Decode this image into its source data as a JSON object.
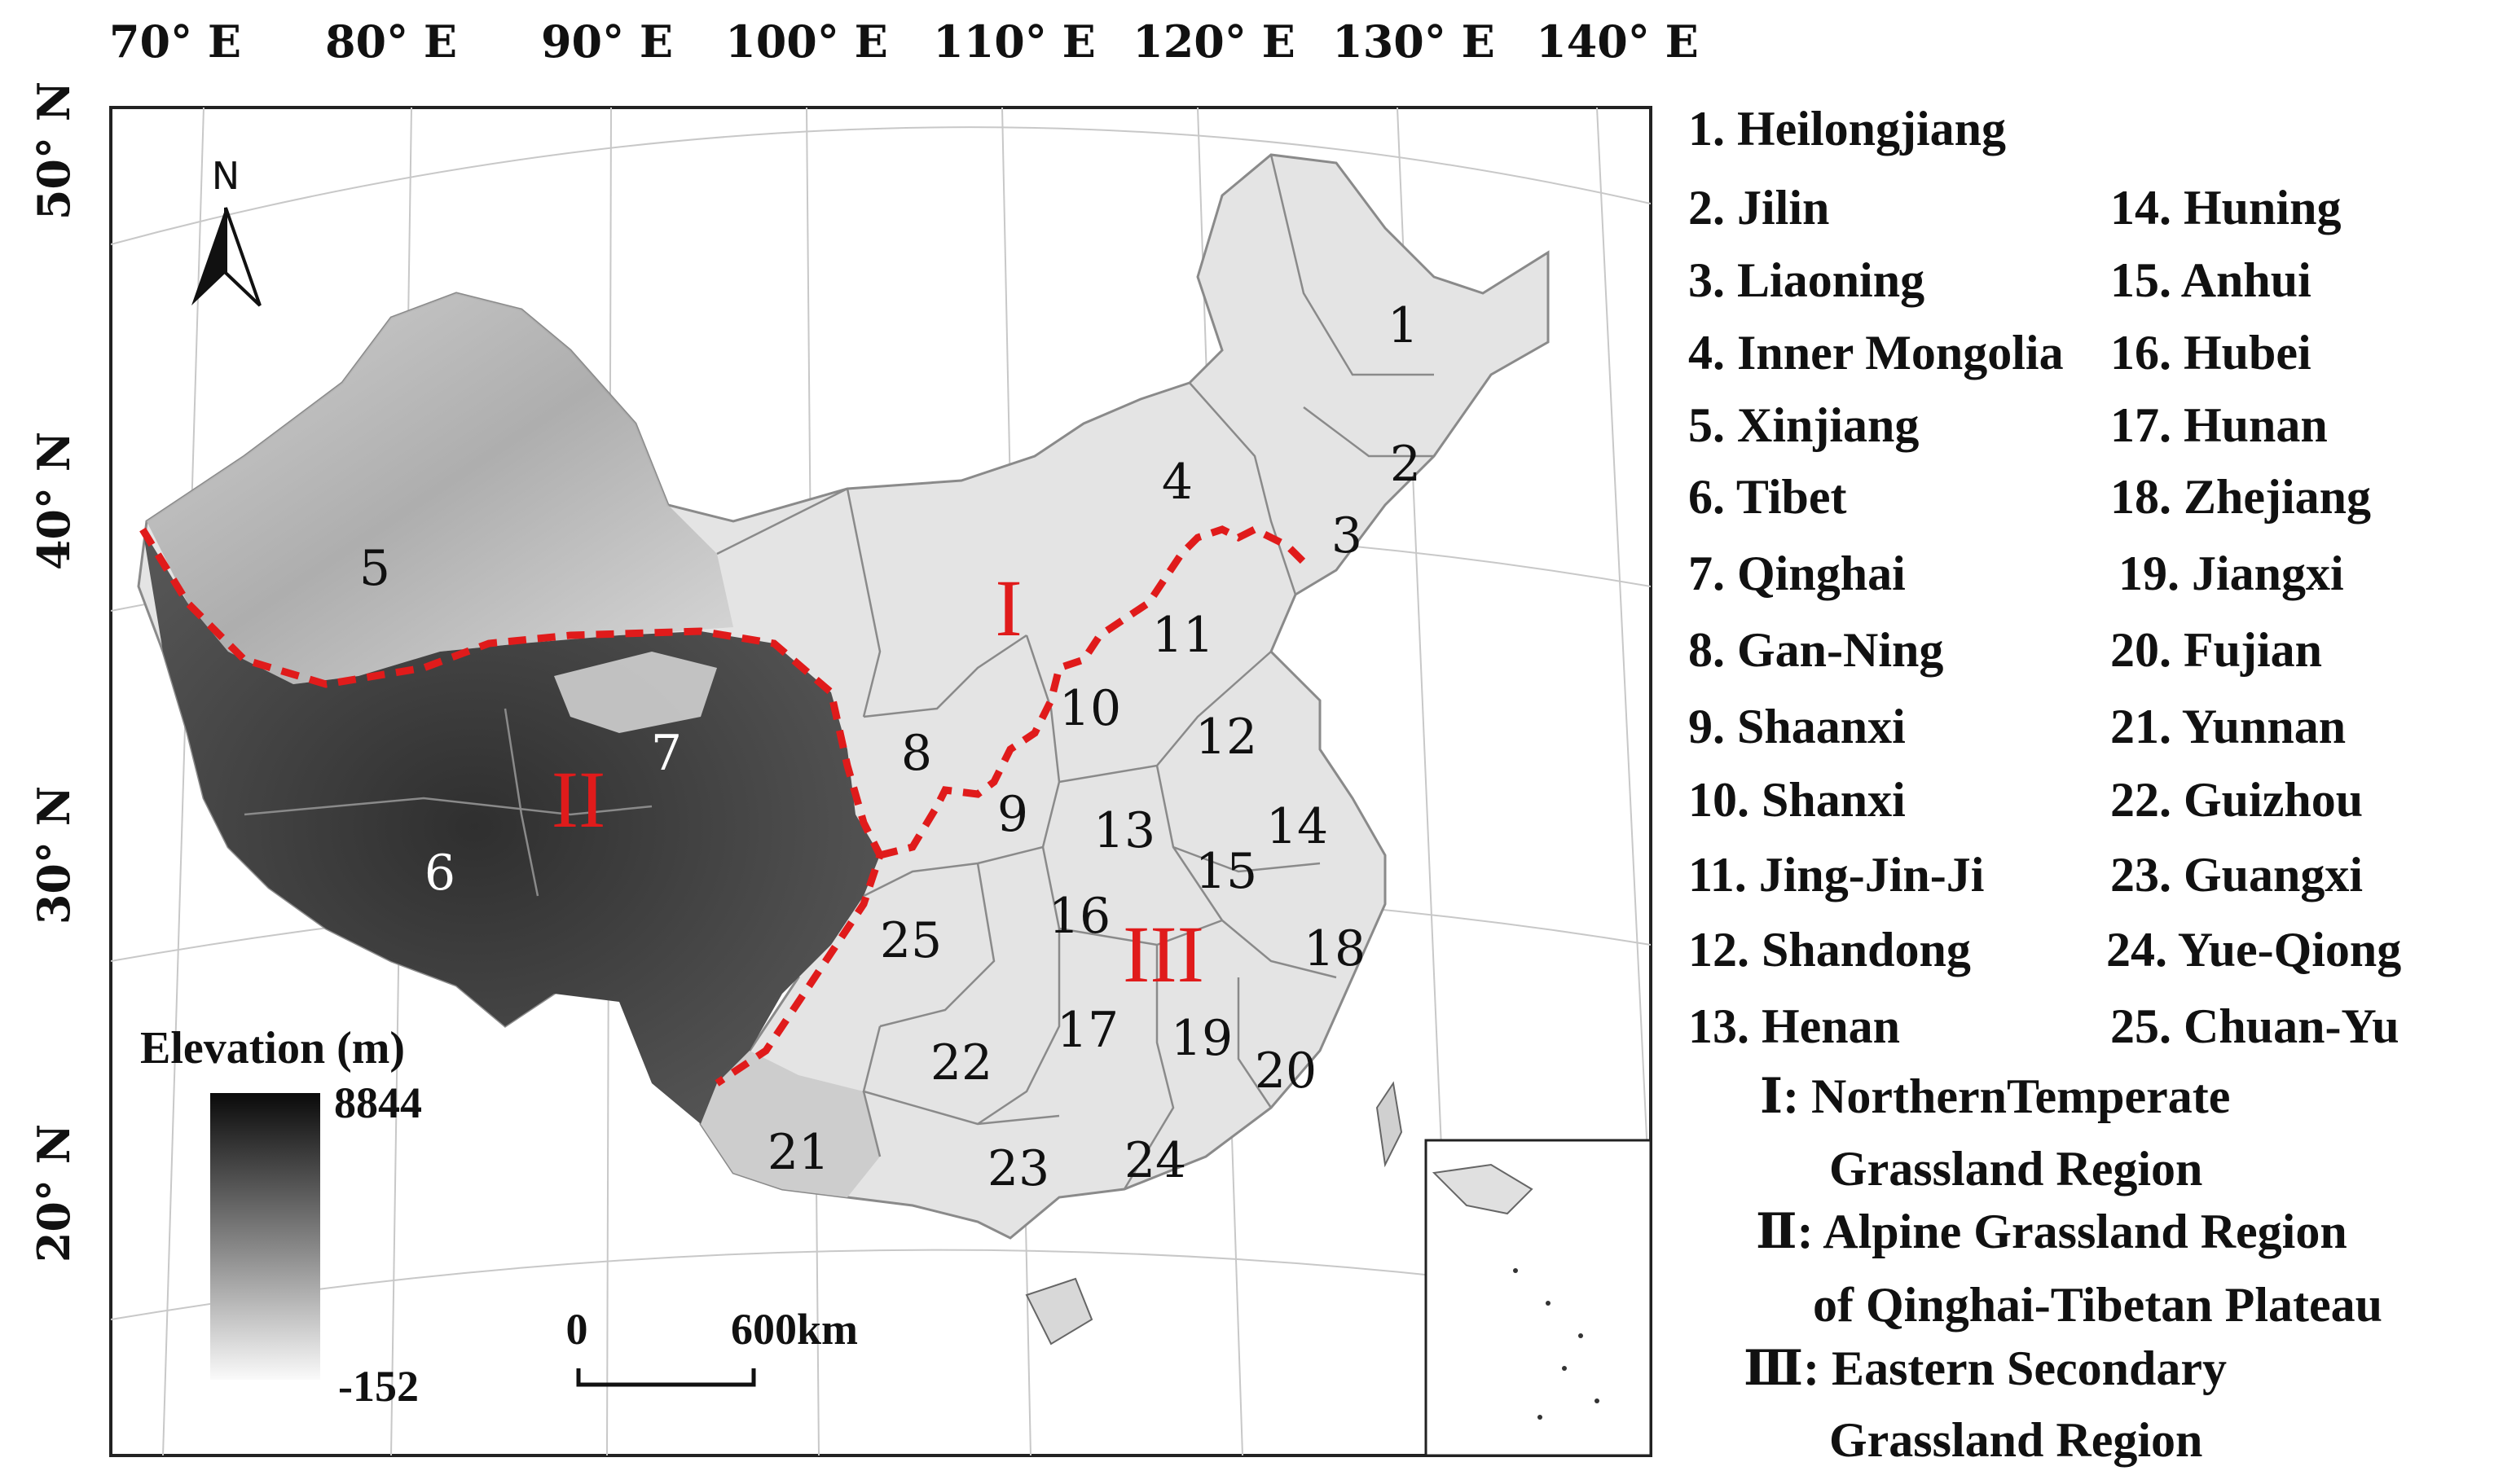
{
  "longitude_labels": [
    "70° E",
    "80° E",
    "90° E",
    "100° E",
    "110° E",
    "120° E",
    "130° E",
    "140° E"
  ],
  "latitude_labels": [
    "50° N",
    "40° N",
    "30° N",
    "20° N"
  ],
  "north_arrow": {
    "label": "N",
    "icon": "north-arrow-icon"
  },
  "elevation_legend": {
    "title": "Elevation (m)",
    "max": "8844",
    "min": "-152"
  },
  "scale_bar": {
    "start": "0",
    "end": "600km"
  },
  "map_numbers": [
    "1",
    "2",
    "3",
    "4",
    "5",
    "6",
    "7",
    "8",
    "9",
    "10",
    "11",
    "12",
    "13",
    "14",
    "15",
    "16",
    "17",
    "18",
    "19",
    "20",
    "21",
    "22",
    "23",
    "24",
    "25"
  ],
  "region_numerals": [
    "I",
    "II",
    "III"
  ],
  "province_legend": [
    "1. Heilongjiang",
    "2. Jilin",
    "3. Liaoning",
    "4. Inner Mongolia",
    "5. Xinjiang",
    "6. Tibet",
    "7. Qinghai",
    "8. Gan-Ning",
    "9. Shaanxi",
    "10. Shanxi",
    "11. Jing-Jin-Ji",
    "12. Shandong",
    "13. Henan",
    "14. Huning",
    "15. Anhui",
    "16. Hubei",
    "17. Hunan",
    "18. Zhejiang",
    "19. Jiangxi",
    "20. Fujian",
    "21. Yunnan",
    "22. Guizhou",
    "23. Guangxi",
    "24. Yue-Qiong",
    "25. Chuan-Yu"
  ],
  "region_legend": [
    {
      "numeral": "Ⅰ",
      "line1": ": NorthernTemperate",
      "line2": "Grassland Region"
    },
    {
      "numeral": "Ⅱ",
      "line1": ": Alpine Grassland Region",
      "line2": "of Qinghai-Tibetan Plateau"
    },
    {
      "numeral": "Ⅲ",
      "line1": ": Eastern Secondary",
      "line2": "Grassland Region"
    }
  ],
  "colors": {
    "boundary": "#e01b1b",
    "land_light": "#e6e6e6",
    "plateau_dark": "#3a3a3a",
    "frame": "#222222"
  }
}
